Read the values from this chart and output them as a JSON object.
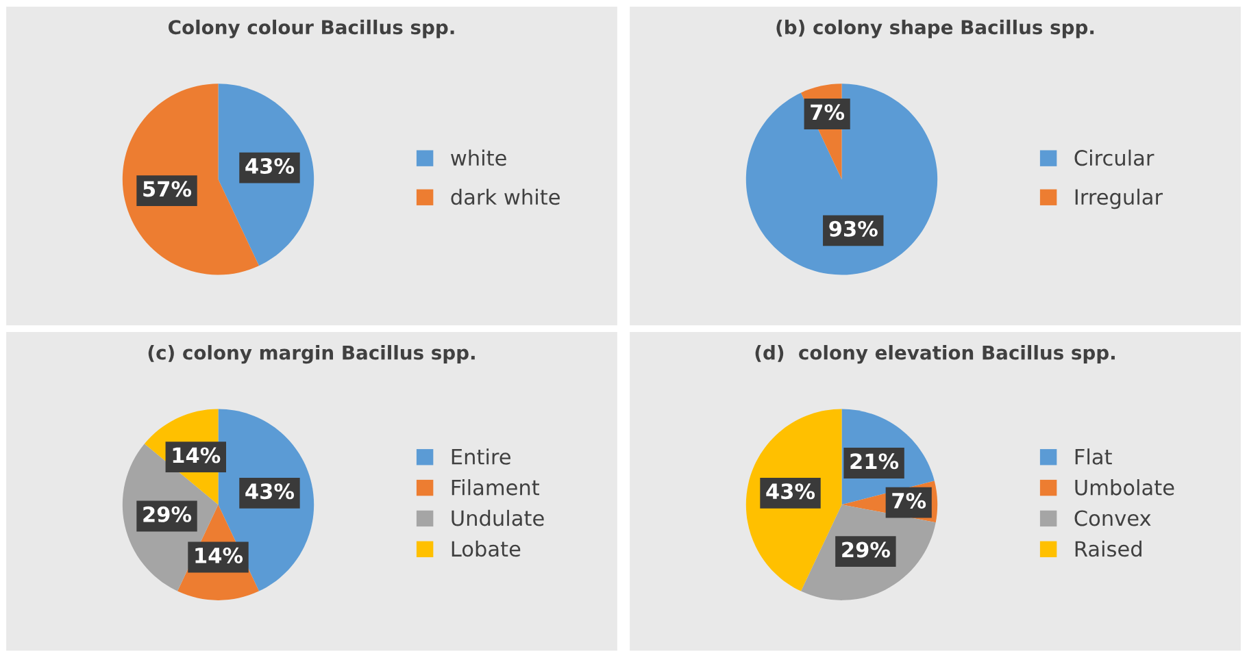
{
  "chart_data": [
    {
      "type": "pie",
      "title": "Colony colour Bacillus spp.",
      "categories": [
        "white",
        "dark white"
      ],
      "values": [
        43,
        57
      ],
      "colors": [
        "#5b9bd5",
        "#ed7d31"
      ],
      "value_labels": [
        "43%",
        "57%"
      ],
      "legend": "right"
    },
    {
      "type": "pie",
      "title": "(b) colony shape Bacillus spp.",
      "categories": [
        "Circular",
        "Irregular"
      ],
      "values": [
        93,
        7
      ],
      "colors": [
        "#5b9bd5",
        "#ed7d31"
      ],
      "value_labels": [
        "93%",
        "7%"
      ],
      "legend": "right"
    },
    {
      "type": "pie",
      "title": "(c) colony margin Bacillus spp.",
      "categories": [
        "Entire",
        "Filament",
        "Undulate",
        "Lobate"
      ],
      "values": [
        43,
        14,
        29,
        14
      ],
      "colors": [
        "#5b9bd5",
        "#ed7d31",
        "#a5a5a5",
        "#ffc000"
      ],
      "value_labels": [
        "43%",
        "14%",
        "29%",
        "14%"
      ],
      "legend": "right"
    },
    {
      "type": "pie",
      "title": "(d)  colony elevation Bacillus spp.",
      "categories": [
        "Flat",
        "Umbolate",
        "Convex",
        "Raised"
      ],
      "values": [
        21,
        7,
        29,
        43
      ],
      "colors": [
        "#5b9bd5",
        "#ed7d31",
        "#a5a5a5",
        "#ffc000"
      ],
      "value_labels": [
        "21%",
        "7%",
        "29%",
        "43%"
      ],
      "legend": "right"
    }
  ]
}
